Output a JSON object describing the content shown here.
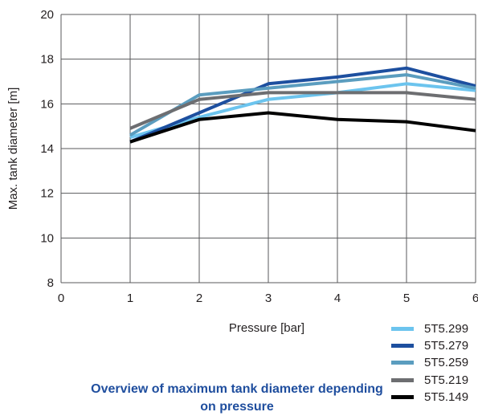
{
  "chart_data": {
    "type": "line",
    "title": "Overview of maximum tank diameter depending on pressure",
    "xlabel": "Pressure [bar]",
    "ylabel": "Max. tank diameter [m]",
    "xlim": [
      0,
      6
    ],
    "ylim": [
      8,
      20
    ],
    "xticks": [
      0,
      1,
      2,
      3,
      4,
      5,
      6
    ],
    "yticks": [
      8,
      10,
      12,
      14,
      16,
      18,
      20
    ],
    "grid": true,
    "legend_position": "bottom-right",
    "x": [
      1,
      2,
      3,
      4,
      5,
      6
    ],
    "series": [
      {
        "name": "5T5.299",
        "color": "#6cc4ee",
        "values": [
          14.5,
          15.4,
          16.2,
          16.5,
          16.9,
          16.6
        ]
      },
      {
        "name": "5T5.279",
        "color": "#1d4f9f",
        "values": [
          14.3,
          15.6,
          16.9,
          17.2,
          17.6,
          16.8
        ]
      },
      {
        "name": "5T5.259",
        "color": "#5b9dbf",
        "values": [
          14.6,
          16.4,
          16.7,
          17.0,
          17.3,
          16.7
        ]
      },
      {
        "name": "5T5.219",
        "color": "#6d6e71",
        "values": [
          14.9,
          16.2,
          16.5,
          16.5,
          16.5,
          16.2
        ]
      },
      {
        "name": "5T5.149",
        "color": "#000000",
        "values": [
          14.3,
          15.3,
          15.6,
          15.3,
          15.2,
          14.8
        ]
      }
    ]
  }
}
